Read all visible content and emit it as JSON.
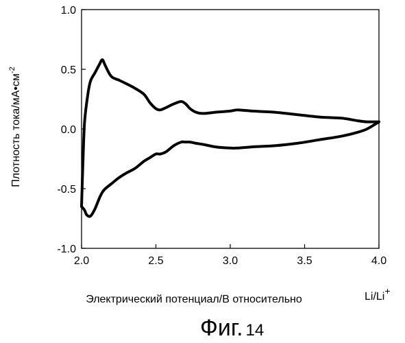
{
  "chart_data": {
    "type": "line",
    "title": "",
    "ylabel": "Плотность тока/мА•см",
    "ylabel_sup": "-2",
    "xlabel": "Электрический потенциал/В относительно",
    "xlabel_suffix": "Li/Li",
    "xlabel_suffix_sup": "+",
    "xlim": [
      2.0,
      4.0
    ],
    "ylim": [
      -1.0,
      1.0
    ],
    "x_ticks": [
      2.0,
      2.5,
      3.0,
      3.5,
      4.0
    ],
    "x_tick_labels": [
      "2.0",
      "2.5",
      "3.0",
      "3.5",
      "4.0"
    ],
    "y_ticks": [
      1.0,
      0.5,
      0.0,
      -0.5,
      -1.0
    ],
    "y_tick_labels": [
      "1.0",
      "0.5",
      "0.0",
      "-0.5",
      "-1.0"
    ],
    "grid": false,
    "series": [
      {
        "x": [
          2.0,
          2.02,
          2.035,
          2.06,
          2.09,
          2.12,
          2.14,
          2.16,
          2.2,
          2.25,
          2.3,
          2.36,
          2.42,
          2.46,
          2.5,
          2.53,
          2.57,
          2.62,
          2.67,
          2.7,
          2.73,
          2.77,
          2.82,
          2.9,
          3.0,
          3.05,
          3.15,
          3.3,
          3.45,
          3.6,
          3.75,
          3.85,
          3.92,
          4.0
        ],
        "y": [
          -0.65,
          -0.68,
          -0.72,
          -0.73,
          -0.67,
          -0.58,
          -0.53,
          -0.5,
          -0.46,
          -0.41,
          -0.37,
          -0.33,
          -0.27,
          -0.24,
          -0.21,
          -0.21,
          -0.19,
          -0.14,
          -0.11,
          -0.11,
          -0.11,
          -0.12,
          -0.13,
          -0.15,
          -0.16,
          -0.16,
          -0.15,
          -0.14,
          -0.12,
          -0.09,
          -0.06,
          -0.03,
          0.0,
          0.06
        ]
      },
      {
        "x": [
          2.0,
          2.01,
          2.02,
          2.04,
          2.06,
          2.09,
          2.12,
          2.14,
          2.16,
          2.2,
          2.25,
          2.3,
          2.36,
          2.42,
          2.46,
          2.5,
          2.53,
          2.57,
          2.62,
          2.67,
          2.7,
          2.73,
          2.77,
          2.82,
          2.9,
          3.0,
          3.05,
          3.15,
          3.3,
          3.45,
          3.6,
          3.75,
          3.85,
          3.92,
          4.0
        ],
        "y": [
          -0.65,
          -0.25,
          0.05,
          0.27,
          0.4,
          0.47,
          0.54,
          0.58,
          0.53,
          0.44,
          0.41,
          0.38,
          0.34,
          0.29,
          0.22,
          0.17,
          0.16,
          0.18,
          0.21,
          0.23,
          0.21,
          0.17,
          0.14,
          0.13,
          0.14,
          0.15,
          0.16,
          0.15,
          0.14,
          0.12,
          0.1,
          0.09,
          0.07,
          0.06,
          0.06
        ]
      }
    ]
  },
  "caption": {
    "text": "Фиг.",
    "number": "14"
  },
  "colors": {
    "line": "#000000",
    "axis": "#000000",
    "background": "#ffffff"
  }
}
